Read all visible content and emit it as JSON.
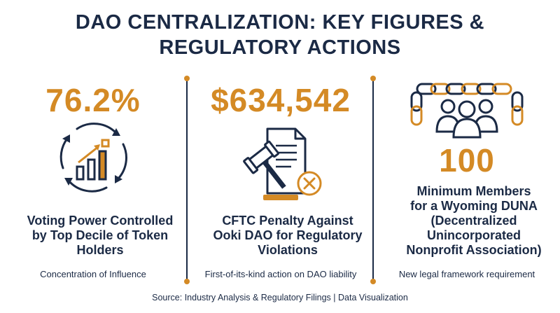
{
  "title_line1": "DAO CENTRALIZATION: KEY FIGURES &",
  "title_line2": "REGULATORY ACTIONS",
  "colors": {
    "navy": "#1b2a45",
    "accent": "#d48a25"
  },
  "stats": [
    {
      "value": "76.2%",
      "icon": "cycle-bar-chart-icon",
      "label_lines": [
        "Voting Power Controlled",
        "by Top Decile of Token",
        "Holders"
      ],
      "subtext": "Concentration of Influence"
    },
    {
      "value": "$634,542",
      "icon": "gavel-document-icon",
      "label_lines": [
        "CFTC Penalty Against",
        "Ooki DAO for Regulatory",
        "Violations"
      ],
      "subtext": "First-of-its-kind action on DAO liability"
    },
    {
      "value": "100",
      "icon": "chained-people-group-icon",
      "label_lines": [
        "Minimum Members",
        "for a Wyoming DUNA",
        "(Decentralized",
        "Unincorporated",
        "Nonprofit Association)"
      ],
      "subtext": "New legal framework requirement"
    }
  ],
  "source": "Source: Industry Analysis & Regulatory Filings | Data Visualization"
}
